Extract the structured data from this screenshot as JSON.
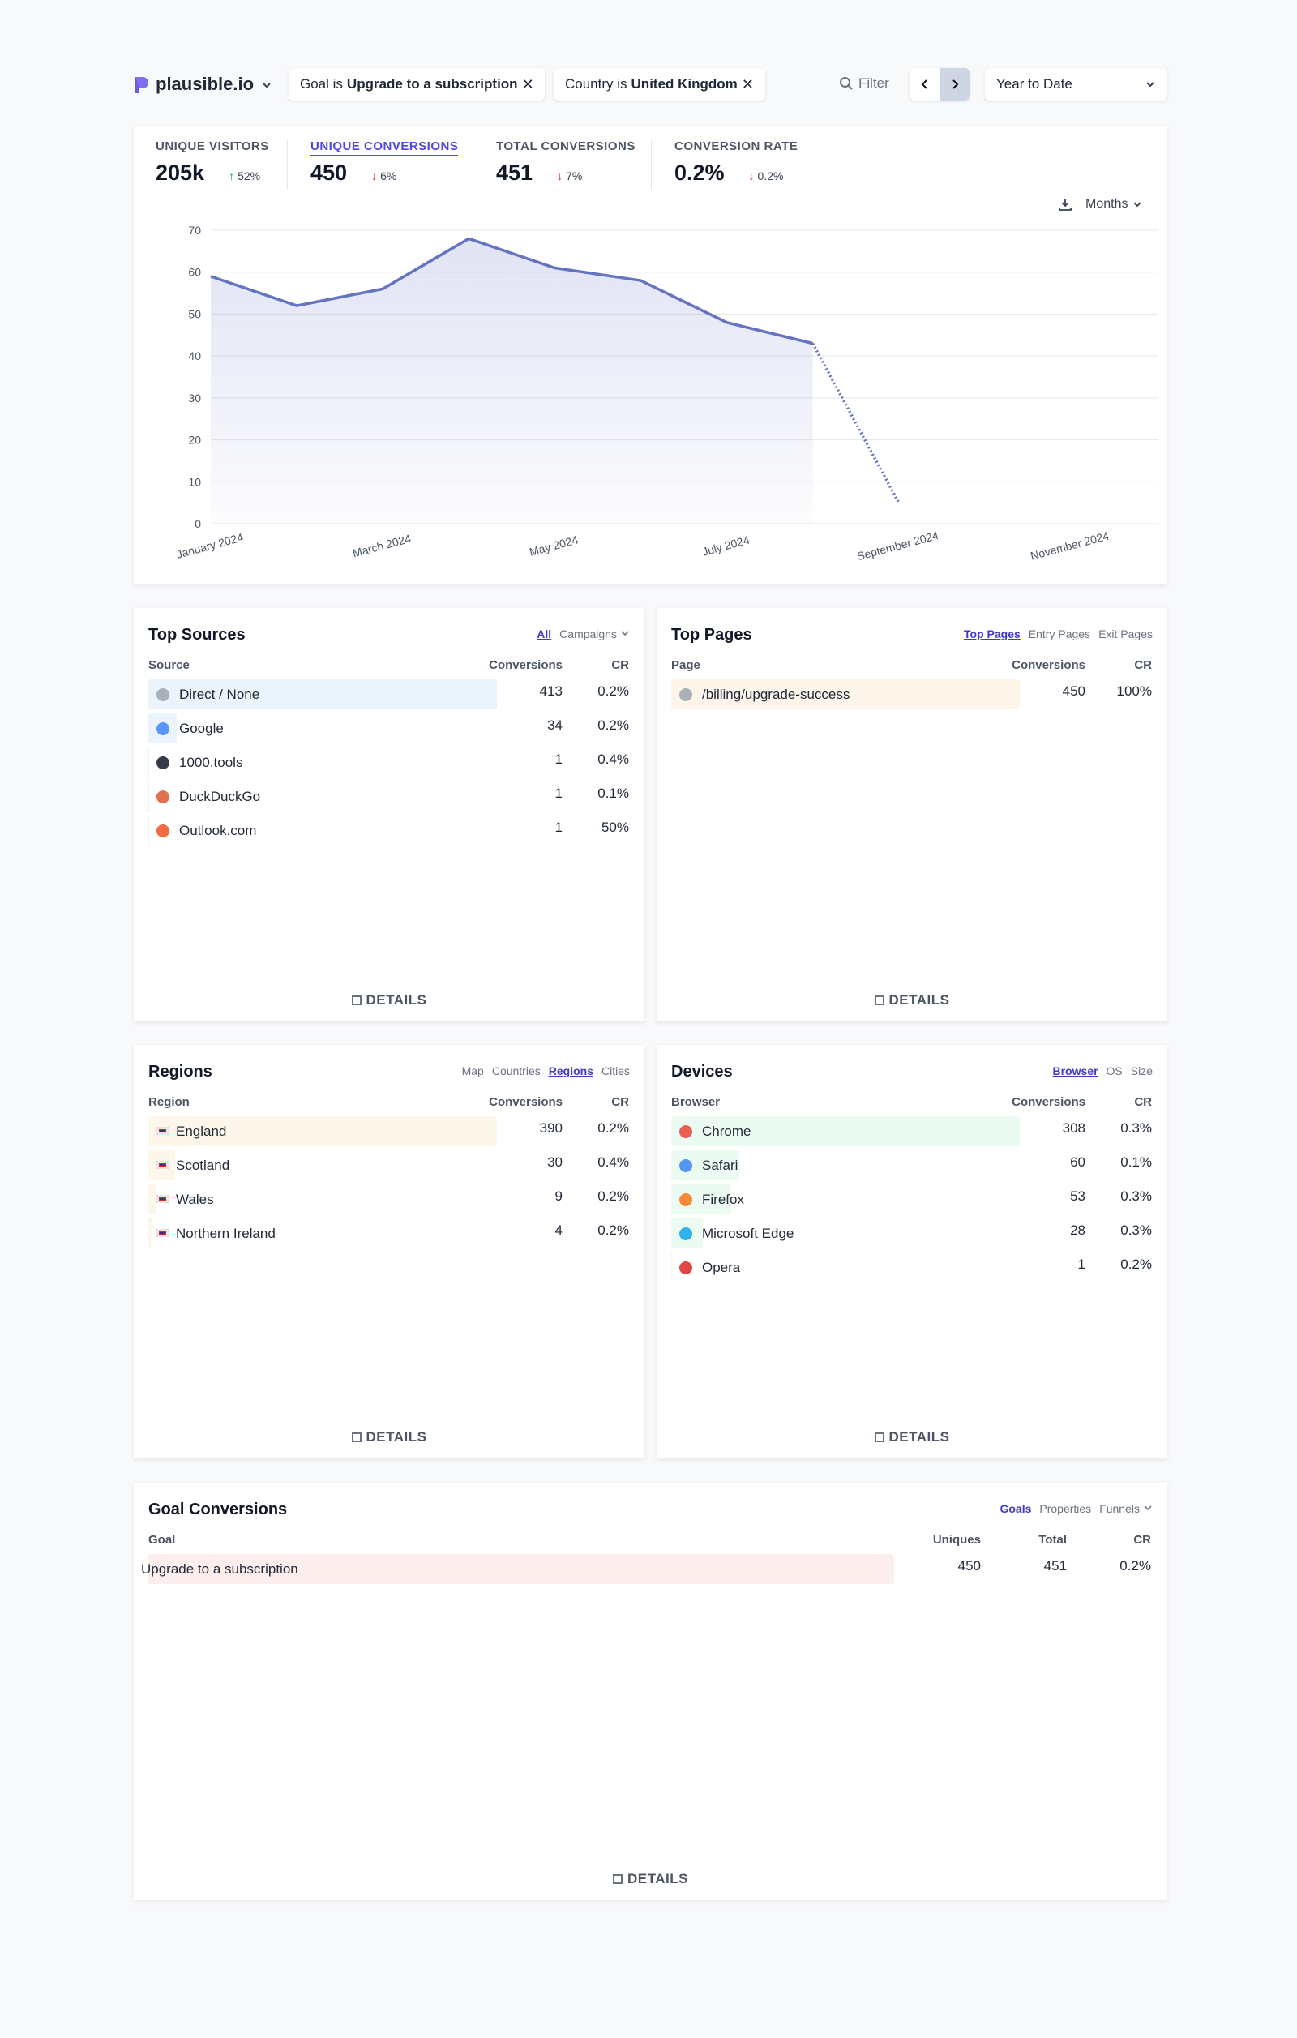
{
  "header": {
    "site": "plausible.io",
    "filters": [
      {
        "label": "Goal is",
        "value": "Upgrade to a subscription"
      },
      {
        "label": "Country is",
        "value": "United Kingdom"
      }
    ],
    "filter_button": "Filter",
    "period": "Year to Date"
  },
  "metrics": [
    {
      "label": "UNIQUE VISITORS",
      "value": "205k",
      "change": "52%",
      "direction": "up"
    },
    {
      "label": "UNIQUE CONVERSIONS",
      "value": "450",
      "change": "6%",
      "direction": "down",
      "active": true
    },
    {
      "label": "TOTAL CONVERSIONS",
      "value": "451",
      "change": "7%",
      "direction": "down"
    },
    {
      "label": "CONVERSION RATE",
      "value": "0.2%",
      "change": "0.2%",
      "direction": "down"
    }
  ],
  "interval": "Months",
  "chart_data": {
    "type": "line",
    "categories": [
      "January 2024",
      null,
      "March 2024",
      null,
      "May 2024",
      null,
      "July 2024",
      null,
      "September 2024",
      null,
      "November 2024",
      null
    ],
    "series": [
      {
        "color": "#6573c3",
        "values": [
          59,
          52,
          56,
          68,
          61,
          58,
          48,
          43,
          5,
          null,
          null,
          null
        ]
      }
    ],
    "dashed_last_segment": true,
    "ylim": [
      0,
      70
    ],
    "yticks": [
      0,
      10,
      20,
      30,
      40,
      50,
      60,
      70
    ],
    "grid": true
  },
  "panels": [
    {
      "title": "Top Sources",
      "tabs": [
        "All",
        "Campaigns"
      ],
      "active_tab": 0,
      "last_tab_menu": true,
      "columns": [
        "Source",
        "Conversions",
        "CR"
      ],
      "bar_color": "#ebf3fd",
      "rows": [
        [
          "Direct / None",
          413,
          "0.2%"
        ],
        [
          "Google",
          34,
          "0.2%"
        ],
        [
          "1000.tools",
          1,
          "0.4%"
        ],
        [
          "DuckDuckGo",
          1,
          "0.1%"
        ],
        [
          "Outlook.com",
          1,
          "50%"
        ]
      ],
      "details": "DETAILS"
    },
    {
      "title": "Top Pages",
      "tabs": [
        "Top Pages",
        "Entry Pages",
        "Exit Pages"
      ],
      "active_tab": 0,
      "columns": [
        "Page",
        "Conversions",
        "CR"
      ],
      "bar_color": "#fdf5ea",
      "rows": [
        [
          "/billing/upgrade-success",
          450,
          "100%"
        ]
      ],
      "details": "DETAILS"
    },
    {
      "title": "Regions",
      "tabs": [
        "Map",
        "Countries",
        "Regions",
        "Cities"
      ],
      "active_tab": 2,
      "columns": [
        "Region",
        "Conversions",
        "CR"
      ],
      "bar_color": "#fdf6ea",
      "rows": [
        [
          "England",
          390,
          "0.2%"
        ],
        [
          "Scotland",
          30,
          "0.4%"
        ],
        [
          "Wales",
          9,
          "0.2%"
        ],
        [
          "Northern Ireland",
          4,
          "0.2%"
        ]
      ],
      "details": "DETAILS"
    },
    {
      "title": "Devices",
      "tabs": [
        "Browser",
        "OS",
        "Size"
      ],
      "active_tab": 0,
      "columns": [
        "Browser",
        "Conversions",
        "CR"
      ],
      "bar_color": "#ecfbf1",
      "rows": [
        [
          "Chrome",
          308,
          "0.3%"
        ],
        [
          "Safari",
          60,
          "0.1%"
        ],
        [
          "Firefox",
          53,
          "0.3%"
        ],
        [
          "Microsoft Edge",
          28,
          "0.3%"
        ],
        [
          "Opera",
          1,
          "0.2%"
        ]
      ],
      "details": "DETAILS"
    },
    {
      "title": "Goal Conversions",
      "tabs": [
        "Goals",
        "Properties",
        "Funnels"
      ],
      "active_tab": 0,
      "last_tab_menu": true,
      "columns": [
        "Goal",
        "Uniques",
        "Total",
        "CR"
      ],
      "bar_color": "#fdeeee",
      "rows": [
        [
          "Upgrade to a subscription",
          450,
          451,
          "0.2%"
        ]
      ],
      "details": "DETAILS"
    }
  ]
}
